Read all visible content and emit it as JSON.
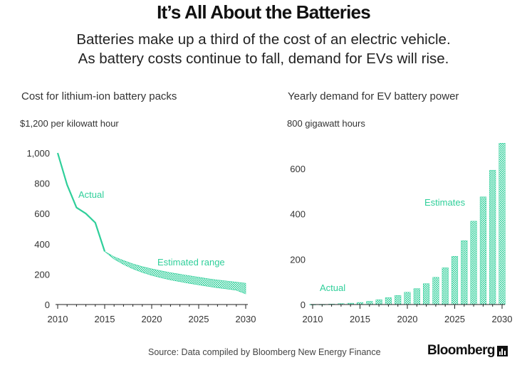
{
  "header": {
    "title": "It’s All About the Batteries",
    "subtitle_line1": "Batteries make up a third of the cost of an electric vehicle.",
    "subtitle_line2": "As battery costs continue to fall, demand for EVs will rise."
  },
  "footer": {
    "source": "Source: Data compiled by Bloomberg New Energy Finance",
    "brand": "Bloomberg"
  },
  "colors": {
    "accent": "#2fcf9a",
    "axis": "#222222",
    "grid": "#e6e6e6"
  },
  "chart_data": [
    {
      "type": "line",
      "title": "Cost for lithium-ion battery packs",
      "ylabel": "$1,200 per kilowatt hour",
      "xlim": [
        2010,
        2030
      ],
      "ylim": [
        0,
        1200
      ],
      "x_ticks": [
        "2010",
        "2015",
        "2020",
        "2025",
        "2030"
      ],
      "y_ticks": [
        "0",
        "200",
        "400",
        "600",
        "800",
        "1,000"
      ],
      "series": [
        {
          "name": "Actual",
          "x": [
            2010,
            2011,
            2012,
            2013,
            2014,
            2015
          ],
          "values": [
            1000,
            790,
            640,
            600,
            540,
            350
          ]
        },
        {
          "name": "Estimated range",
          "x": [
            2015,
            2016,
            2017,
            2018,
            2019,
            2020,
            2021,
            2022,
            2023,
            2024,
            2025,
            2026,
            2027,
            2028,
            2029,
            2030
          ],
          "upper": [
            350,
            315,
            290,
            268,
            250,
            235,
            222,
            210,
            200,
            190,
            180,
            170,
            162,
            155,
            148,
            140
          ],
          "lower": [
            350,
            300,
            265,
            235,
            212,
            193,
            177,
            163,
            151,
            140,
            130,
            120,
            111,
            103,
            95,
            70
          ]
        }
      ],
      "annotations": [
        "Actual",
        "Estimated range"
      ]
    },
    {
      "type": "bar",
      "title": "Yearly demand for EV battery power",
      "ylabel": "800 gigawatt hours",
      "xlim": [
        2010,
        2030
      ],
      "ylim": [
        0,
        800
      ],
      "x_ticks": [
        "2010",
        "2015",
        "2020",
        "2025",
        "2030"
      ],
      "y_ticks": [
        "0",
        "200",
        "400",
        "600"
      ],
      "series": [
        {
          "name": "Actual",
          "x": [
            2010,
            2011,
            2012,
            2013,
            2014,
            2015
          ],
          "values": [
            0.5,
            1,
            2,
            4,
            6,
            9
          ]
        },
        {
          "name": "Estimates",
          "x": [
            2016,
            2017,
            2018,
            2019,
            2020,
            2021,
            2022,
            2023,
            2024,
            2025,
            2026,
            2027,
            2028,
            2029,
            2030
          ],
          "values": [
            14,
            21,
            30,
            40,
            54,
            70,
            92,
            120,
            162,
            213,
            282,
            368,
            475,
            593,
            712
          ]
        }
      ],
      "annotations": [
        "Actual",
        "Estimates"
      ]
    }
  ]
}
